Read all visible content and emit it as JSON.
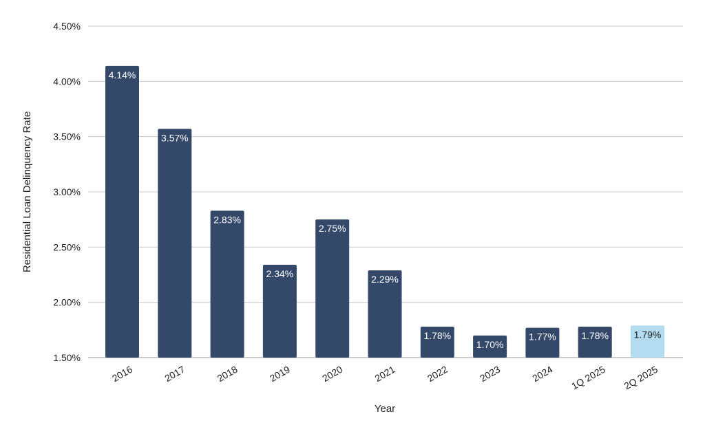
{
  "chart_data": {
    "type": "bar",
    "title": "",
    "xlabel": "Year",
    "ylabel": "Residential Loan Delinquency Rate",
    "ylim": [
      1.5,
      4.5
    ],
    "yticks": [
      "1.50%",
      "2.00%",
      "2.50%",
      "3.00%",
      "3.50%",
      "4.00%",
      "4.50%"
    ],
    "ytick_values": [
      1.5,
      2.0,
      2.5,
      3.0,
      3.5,
      4.0,
      4.5
    ],
    "grid": true,
    "categories": [
      "2016",
      "2017",
      "2018",
      "2019",
      "2020",
      "2021",
      "2022",
      "2023",
      "2024",
      "1Q 2025",
      "2Q 2025"
    ],
    "values": [
      4.14,
      3.57,
      2.83,
      2.34,
      2.75,
      2.29,
      1.78,
      1.7,
      1.77,
      1.78,
      1.79
    ],
    "data_labels": [
      "4.14%",
      "3.57%",
      "2.83%",
      "2.34%",
      "2.75%",
      "2.29%",
      "1.78%",
      "1.70%",
      "1.77%",
      "1.78%",
      "1.79%"
    ],
    "colors": {
      "bar": "#34496a",
      "highlight_bar": "#b3dcf0",
      "label_on_dark": "#ffffff",
      "label_on_light": "#222222"
    },
    "highlight_index": 10
  }
}
